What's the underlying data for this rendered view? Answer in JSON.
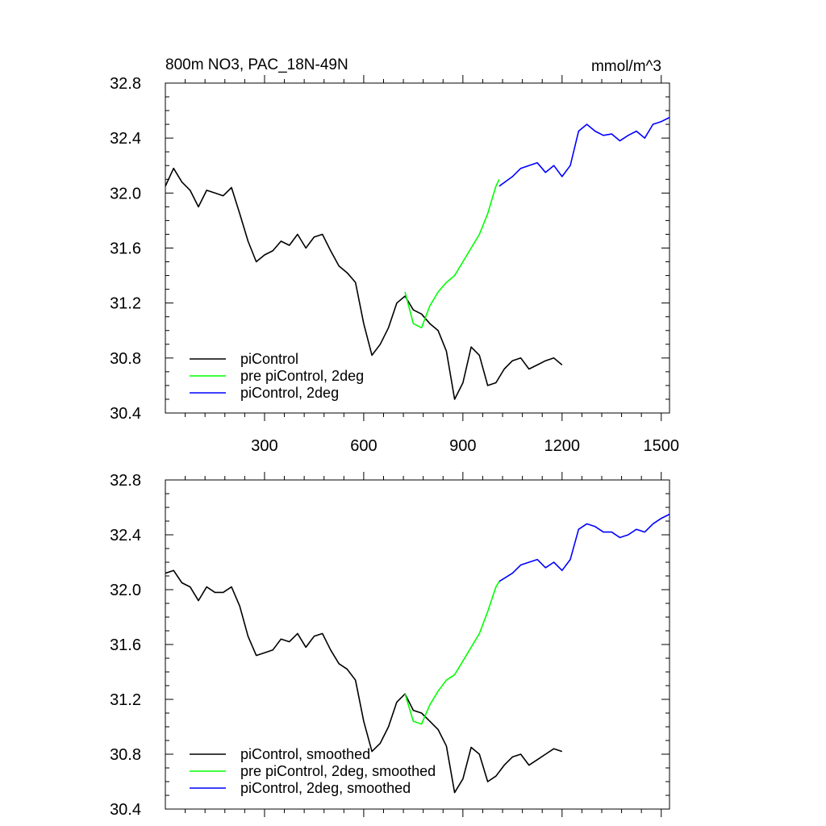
{
  "chart_data": [
    {
      "type": "line",
      "title": "800m NO3, PAC_18N-49N",
      "units": "mmol/m^3",
      "xlim": [
        0,
        1525
      ],
      "ylim": [
        30.4,
        32.8
      ],
      "xticks": [
        300,
        600,
        900,
        1200,
        1500
      ],
      "xtick_labels": [
        "300",
        "600",
        "900",
        "1200",
        "1500"
      ],
      "yticks": [
        30.4,
        30.8,
        31.2,
        31.6,
        32.0,
        32.4,
        32.8
      ],
      "ytick_labels": [
        "30.4",
        "30.8",
        "31.2",
        "31.6",
        "32.0",
        "32.4",
        "32.8"
      ],
      "legend_position": "bottom-left",
      "series": [
        {
          "name": "piControl",
          "color": "#000000",
          "x": [
            0,
            25,
            50,
            75,
            100,
            125,
            150,
            175,
            200,
            225,
            250,
            275,
            300,
            325,
            350,
            375,
            400,
            425,
            450,
            475,
            500,
            525,
            550,
            575,
            600,
            625,
            650,
            675,
            700,
            725,
            750,
            775,
            800,
            825,
            850,
            875,
            900,
            925,
            950,
            975,
            1000,
            1025,
            1050,
            1075,
            1100,
            1125,
            1150,
            1175,
            1200
          ],
          "y": [
            32.05,
            32.18,
            32.08,
            32.02,
            31.9,
            32.02,
            32.0,
            31.98,
            32.04,
            31.85,
            31.65,
            31.5,
            31.55,
            31.58,
            31.65,
            31.62,
            31.7,
            31.6,
            31.68,
            31.7,
            31.58,
            31.47,
            31.42,
            31.35,
            31.05,
            30.82,
            30.9,
            31.02,
            31.2,
            31.25,
            31.15,
            31.12,
            31.05,
            31.0,
            30.85,
            30.5,
            30.62,
            30.88,
            30.82,
            30.6,
            30.62,
            30.72,
            30.78,
            30.8,
            30.72,
            30.75,
            30.78,
            30.8,
            30.75
          ]
        },
        {
          "name": "pre piControl, 2deg",
          "color": "#00ff00",
          "x": [
            725,
            750,
            775,
            800,
            825,
            850,
            875,
            900,
            925,
            950,
            975,
            1000,
            1010
          ],
          "y": [
            31.28,
            31.05,
            31.02,
            31.18,
            31.28,
            31.35,
            31.4,
            31.5,
            31.6,
            31.7,
            31.85,
            32.05,
            32.1
          ]
        },
        {
          "name": "piControl, 2deg",
          "color": "#0000ff",
          "x": [
            1010,
            1050,
            1075,
            1100,
            1125,
            1150,
            1175,
            1200,
            1225,
            1250,
            1275,
            1300,
            1325,
            1350,
            1375,
            1400,
            1425,
            1450,
            1475,
            1500,
            1525
          ],
          "y": [
            32.05,
            32.12,
            32.18,
            32.2,
            32.22,
            32.15,
            32.2,
            32.12,
            32.2,
            32.45,
            32.5,
            32.45,
            32.42,
            32.43,
            32.38,
            32.42,
            32.45,
            32.4,
            32.5,
            32.52,
            32.55
          ]
        }
      ]
    },
    {
      "type": "line",
      "xlim": [
        0,
        1525
      ],
      "ylim": [
        30.4,
        32.8
      ],
      "yticks": [
        30.4,
        30.8,
        31.2,
        31.6,
        32.0,
        32.4,
        32.8
      ],
      "ytick_labels": [
        "30.4",
        "30.8",
        "31.2",
        "31.6",
        "32.0",
        "32.4",
        "32.8"
      ],
      "legend_position": "bottom-left",
      "series": [
        {
          "name": "piControl, smoothed",
          "color": "#000000",
          "x": [
            0,
            25,
            50,
            75,
            100,
            125,
            150,
            175,
            200,
            225,
            250,
            275,
            300,
            325,
            350,
            375,
            400,
            425,
            450,
            475,
            500,
            525,
            550,
            575,
            600,
            625,
            650,
            675,
            700,
            725,
            750,
            775,
            800,
            825,
            850,
            875,
            900,
            925,
            950,
            975,
            1000,
            1025,
            1050,
            1075,
            1100,
            1125,
            1150,
            1175,
            1200
          ],
          "y": [
            32.12,
            32.14,
            32.05,
            32.02,
            31.92,
            32.02,
            31.98,
            31.98,
            32.02,
            31.88,
            31.66,
            31.52,
            31.54,
            31.56,
            31.64,
            31.62,
            31.68,
            31.58,
            31.66,
            31.68,
            31.56,
            31.46,
            31.42,
            31.34,
            31.04,
            30.82,
            30.88,
            31.0,
            31.18,
            31.24,
            31.12,
            31.1,
            31.04,
            30.98,
            30.86,
            30.52,
            30.62,
            30.85,
            30.8,
            30.6,
            30.64,
            30.72,
            30.78,
            30.8,
            30.72,
            30.76,
            30.8,
            30.84,
            30.82
          ]
        },
        {
          "name": "pre piControl, 2deg, smoothed",
          "color": "#00ff00",
          "x": [
            725,
            750,
            775,
            800,
            825,
            850,
            875,
            900,
            925,
            950,
            975,
            1000,
            1010
          ],
          "y": [
            31.24,
            31.04,
            31.02,
            31.16,
            31.26,
            31.34,
            31.38,
            31.48,
            31.58,
            31.68,
            31.84,
            32.02,
            32.06
          ]
        },
        {
          "name": "piControl, 2deg, smoothed",
          "color": "#0000ff",
          "x": [
            1010,
            1050,
            1075,
            1100,
            1125,
            1150,
            1175,
            1200,
            1225,
            1250,
            1275,
            1300,
            1325,
            1350,
            1375,
            1400,
            1425,
            1450,
            1475,
            1500,
            1525
          ],
          "y": [
            32.06,
            32.12,
            32.18,
            32.2,
            32.22,
            32.16,
            32.2,
            32.14,
            32.22,
            32.44,
            32.48,
            32.46,
            32.42,
            32.42,
            32.38,
            32.4,
            32.44,
            32.42,
            32.48,
            32.52,
            32.55
          ]
        }
      ]
    }
  ]
}
